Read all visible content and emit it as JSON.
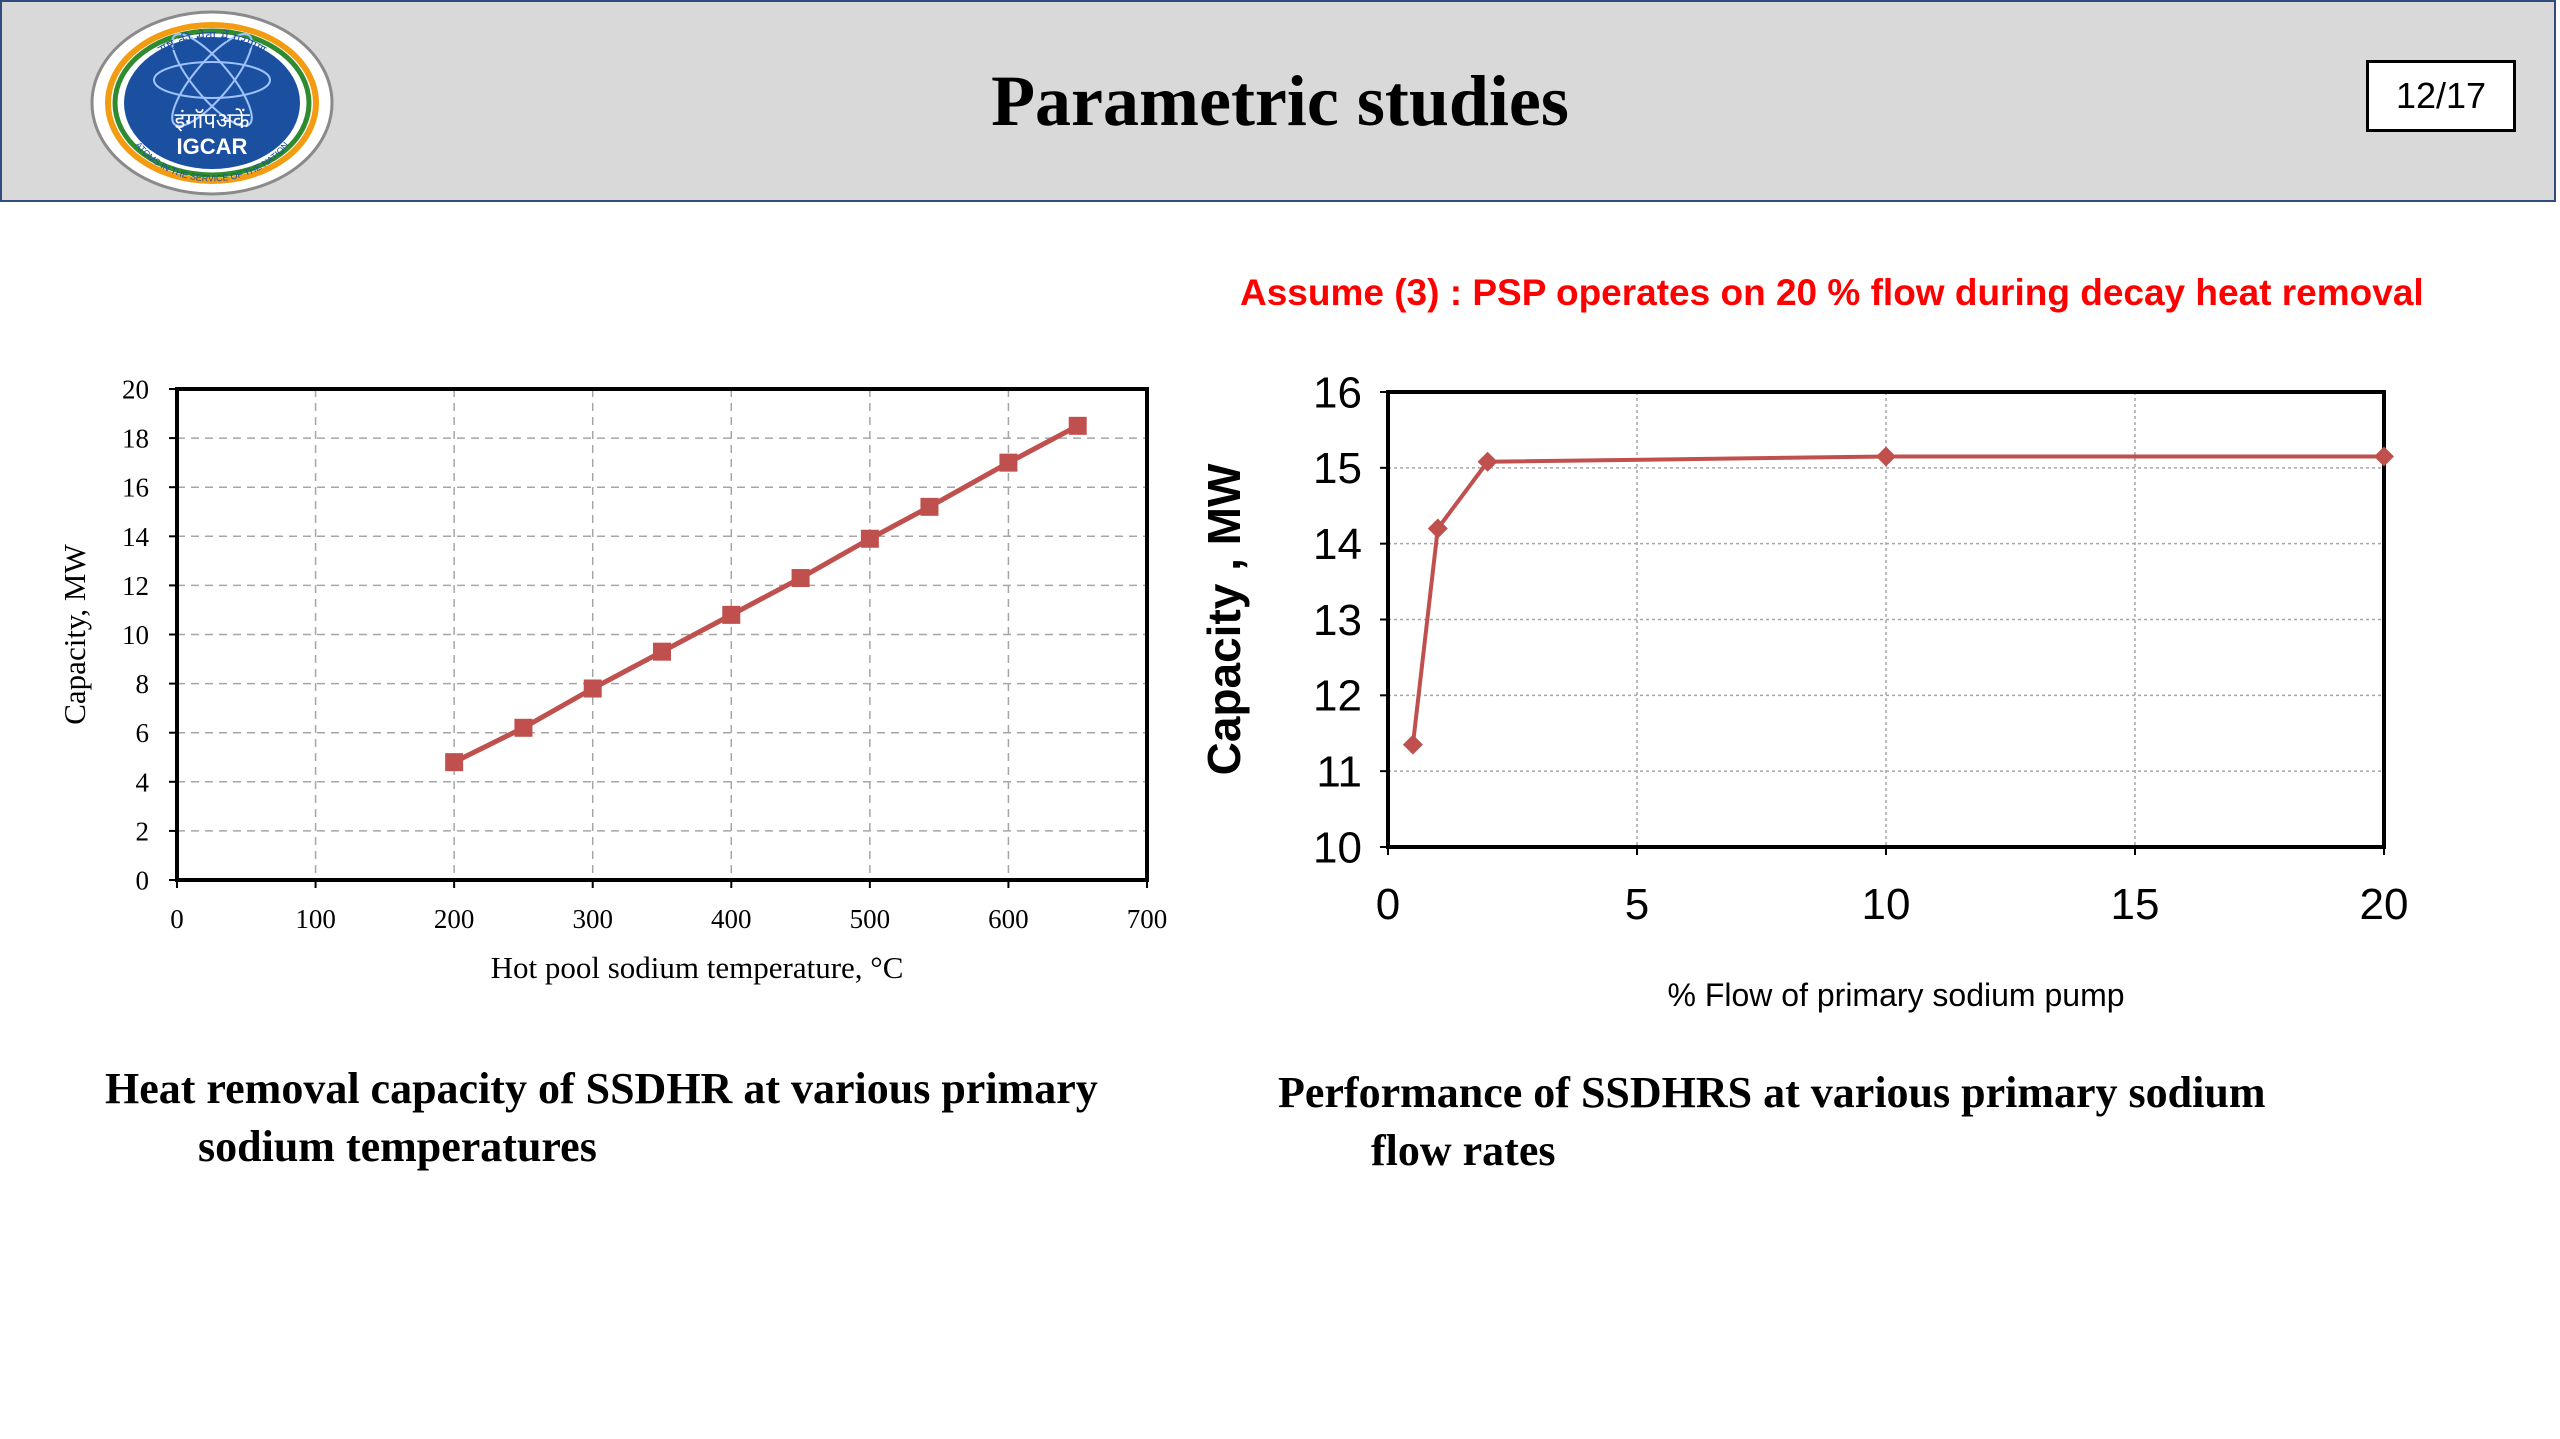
{
  "slide": {
    "title": "Parametric studies",
    "page_number": "12/17",
    "logo": {
      "text_line1": "इंगॉपअकें",
      "text_line2": "IGCAR",
      "arc_top": "राष्ट्र की सेवा में परमाणु",
      "arc_bottom": "ATOMS IN THE SERVICE OF THE NATION",
      "colors": {
        "blue": "#1b4fa0",
        "saffron": "#f39c12",
        "green": "#2e8b2e"
      }
    }
  },
  "assumption": "Assume (3) : PSP operates on 20 % flow during decay heat removal",
  "captions": {
    "left_line1": "Heat removal capacity of SSDHR at various primary",
    "left_line2": "sodium temperatures",
    "right_line1": "Performance of SSDHRS at various primary sodium",
    "right_line2": "flow rates"
  },
  "chart_data": [
    {
      "type": "line",
      "xlabel": "Hot pool sodium  temperature,  °C",
      "ylabel": "Capacity, MW",
      "xlim": [
        0,
        700
      ],
      "ylim": [
        0,
        20
      ],
      "xticks": [
        0,
        100,
        200,
        300,
        400,
        500,
        600,
        700
      ],
      "yticks": [
        0,
        2,
        4,
        6,
        8,
        10,
        12,
        14,
        16,
        18,
        20
      ],
      "grid": true,
      "marker": "square",
      "color": "#c0504d",
      "series": [
        {
          "x": [
            200,
            250,
            300,
            350,
            400,
            450,
            500,
            543,
            600,
            650
          ],
          "y": [
            4.8,
            6.2,
            7.8,
            9.3,
            10.8,
            12.3,
            13.9,
            15.2,
            17.0,
            18.5
          ]
        }
      ]
    },
    {
      "type": "line",
      "xlabel": "%  Flow of primary sodium pump",
      "ylabel": "Capacity , MW",
      "xlim": [
        0,
        20
      ],
      "ylim": [
        10,
        16
      ],
      "xticks": [
        0,
        5,
        10,
        15,
        20
      ],
      "yticks": [
        10,
        11,
        12,
        13,
        14,
        15,
        16
      ],
      "grid": true,
      "marker": "diamond",
      "color": "#c0504d",
      "series": [
        {
          "x": [
            0.5,
            1,
            2,
            10,
            20
          ],
          "y": [
            11.35,
            14.2,
            15.08,
            15.15,
            15.15
          ]
        }
      ]
    }
  ]
}
